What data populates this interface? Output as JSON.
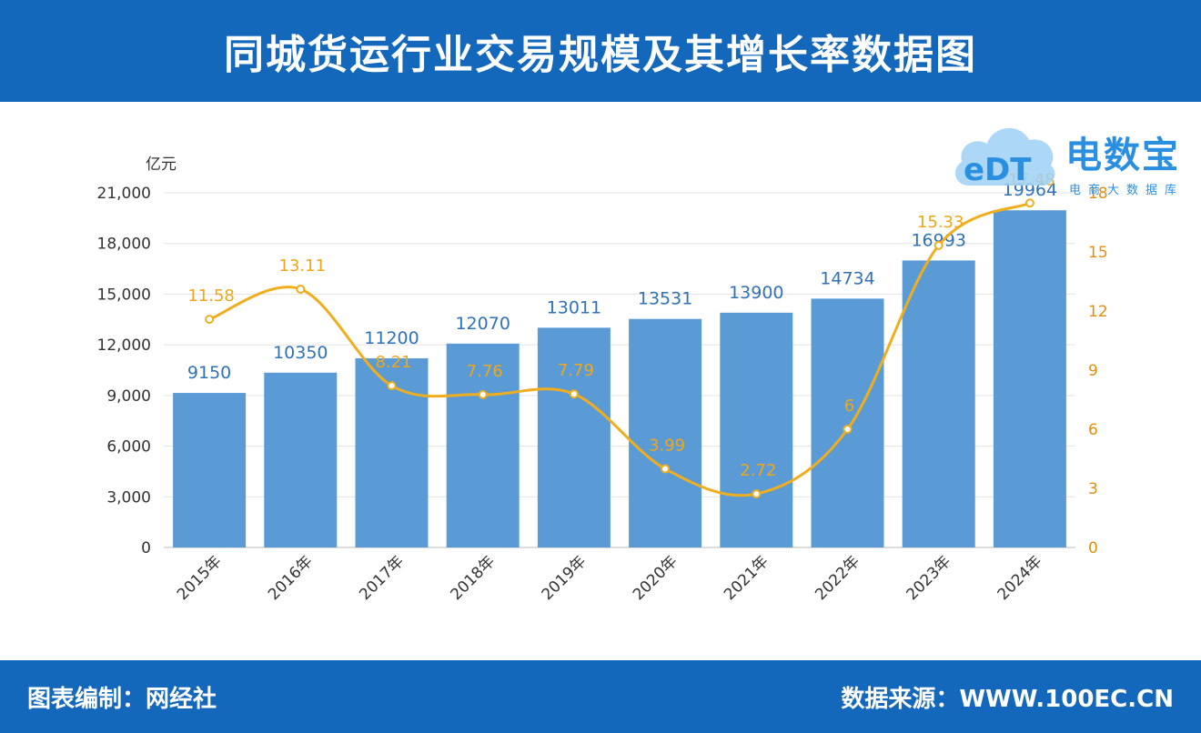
{
  "header": {
    "title": "同城货运行业交易规模及其增长率数据图"
  },
  "footer": {
    "left": "图表编制：网经社",
    "right": "数据来源：WWW.100EC.CN"
  },
  "logo": {
    "brand": "电数宝",
    "sub": "电商大数据库",
    "mark": "eDT"
  },
  "colors": {
    "bar": "#5b9bd5",
    "line": "#f0ae1f",
    "header": "#1368bb",
    "tick": "#555555"
  },
  "chart_data": {
    "type": "bar",
    "categories": [
      "2015年",
      "2016年",
      "2017年",
      "2018年",
      "2019年",
      "2020年",
      "2021年",
      "2022年",
      "2023年",
      "2024年"
    ],
    "series": [
      {
        "name": "",
        "type": "bar",
        "axis": "left",
        "values": [
          9150,
          10350,
          11200,
          12070,
          13011,
          13531,
          13900,
          14734,
          16993,
          19964
        ],
        "labels": [
          "9150",
          "10350",
          "11200",
          "12070",
          "13011",
          "13531",
          "13900",
          "14734",
          "16993",
          "19964"
        ]
      },
      {
        "name": "",
        "type": "line",
        "axis": "right",
        "values": [
          11.58,
          13.11,
          8.21,
          7.76,
          7.79,
          3.99,
          2.72,
          6,
          15.33,
          17.48
        ],
        "labels": [
          "11.58",
          "13.11",
          "8.21",
          "7.76",
          "7.79",
          "3.99",
          "2.72",
          "6",
          "15.33",
          "17.48"
        ]
      }
    ],
    "y_left": {
      "unit": "亿元",
      "ylim": [
        0,
        21000
      ],
      "ticks": [
        0,
        3000,
        6000,
        9000,
        12000,
        15000,
        18000,
        21000
      ],
      "tick_labels": [
        "0",
        "3,000",
        "6,000",
        "9,000",
        "12,000",
        "15,000",
        "18,000",
        "21,000"
      ]
    },
    "y_right": {
      "ylim": [
        0,
        18
      ],
      "ticks": [
        0,
        3,
        6,
        9,
        12,
        15,
        18
      ],
      "tick_labels": [
        "0",
        "3",
        "6",
        "9",
        "12",
        "15",
        "18"
      ]
    },
    "grid": true,
    "legend": "none"
  }
}
